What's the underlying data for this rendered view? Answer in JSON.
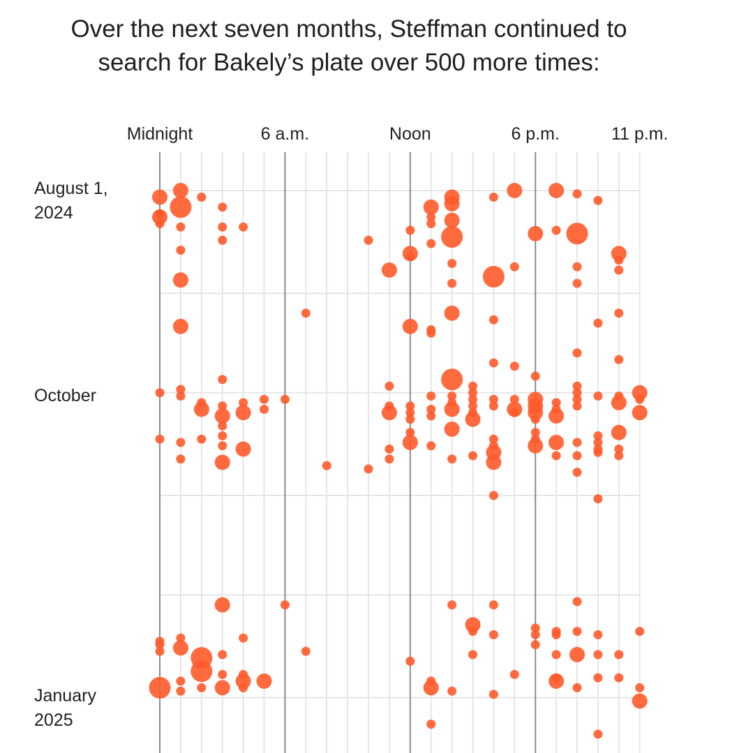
{
  "title_line1": "Over the next seven months, Steffman continued to",
  "title_line2": "search for Bakely’s plate over 500 more times:",
  "colors": {
    "dot": "#ff5a2a",
    "grid": "#e6e6e6",
    "major_grid": "#8c8c8c"
  },
  "chart_data": {
    "type": "scatter",
    "x_axis": {
      "unit": "hour of day",
      "range": [
        0,
        23
      ],
      "tick_labels": [
        {
          "hour": 0,
          "label": "Midnight"
        },
        {
          "hour": 6,
          "label": "6 a.m."
        },
        {
          "hour": 12,
          "label": "Noon"
        },
        {
          "hour": 18,
          "label": "6 p.m."
        },
        {
          "hour": 23,
          "label": "11 p.m."
        }
      ],
      "major_hours": [
        0,
        6,
        12,
        18
      ]
    },
    "y_axis": {
      "unit": "days since Aug 1, 2024",
      "row_labels": [
        {
          "day": 0,
          "lines": [
            "August 1,",
            "2024"
          ]
        },
        {
          "day": 61,
          "lines": [
            "October"
          ]
        },
        {
          "day": 153,
          "lines": [
            "January",
            "2025"
          ]
        }
      ],
      "gridline_days": [
        0,
        31,
        61,
        92,
        122,
        153
      ]
    },
    "size_encoding": "number of searches (relative)",
    "points": [
      [
        0,
        2,
        2
      ],
      [
        0,
        7,
        1
      ],
      [
        0,
        10,
        1
      ],
      [
        0,
        8,
        2
      ],
      [
        1,
        0,
        2
      ],
      [
        1,
        5,
        3
      ],
      [
        1,
        11,
        1
      ],
      [
        1,
        18,
        1
      ],
      [
        1,
        27,
        2
      ],
      [
        2,
        2,
        1
      ],
      [
        3,
        5,
        1
      ],
      [
        3,
        11,
        1
      ],
      [
        3,
        15,
        1
      ],
      [
        4,
        11,
        1
      ],
      [
        10,
        15,
        1
      ],
      [
        11,
        24,
        2
      ],
      [
        12,
        12,
        1
      ],
      [
        12,
        20,
        1
      ],
      [
        12,
        19,
        2
      ],
      [
        13,
        5,
        2
      ],
      [
        13,
        8,
        1
      ],
      [
        13,
        10,
        1
      ],
      [
        13,
        16,
        1
      ],
      [
        14,
        2,
        2
      ],
      [
        14,
        4,
        2
      ],
      [
        14,
        9,
        2
      ],
      [
        14,
        14,
        3
      ],
      [
        14,
        22,
        1
      ],
      [
        14,
        28,
        1
      ],
      [
        16,
        2,
        1
      ],
      [
        16,
        26,
        3
      ],
      [
        17,
        0,
        2
      ],
      [
        17,
        23,
        1
      ],
      [
        18,
        13,
        2
      ],
      [
        19,
        0,
        2
      ],
      [
        19,
        12,
        1
      ],
      [
        20,
        1,
        1
      ],
      [
        20,
        13,
        3
      ],
      [
        20,
        23,
        1
      ],
      [
        20,
        28,
        1
      ],
      [
        21,
        3,
        1
      ],
      [
        22,
        19,
        2
      ],
      [
        22,
        21,
        1
      ],
      [
        22,
        24,
        1
      ],
      [
        7,
        37,
        1
      ],
      [
        1,
        41,
        2
      ],
      [
        12,
        41,
        2
      ],
      [
        13,
        42,
        1
      ],
      [
        13,
        43,
        1
      ],
      [
        14,
        37,
        2
      ],
      [
        16,
        39,
        1
      ],
      [
        22,
        37,
        1
      ],
      [
        22,
        51,
        1
      ],
      [
        18,
        56,
        1
      ],
      [
        17,
        53,
        1
      ],
      [
        16,
        52,
        1
      ],
      [
        20,
        49,
        1
      ],
      [
        21,
        40,
        1
      ],
      [
        0,
        61,
        1
      ],
      [
        1,
        60,
        1
      ],
      [
        1,
        62,
        1
      ],
      [
        3,
        57,
        1
      ],
      [
        11,
        59,
        1
      ],
      [
        14,
        57,
        3
      ],
      [
        0,
        75,
        1
      ],
      [
        1,
        76,
        1
      ],
      [
        1,
        81,
        1
      ],
      [
        2,
        64,
        1
      ],
      [
        2,
        66,
        2
      ],
      [
        2,
        75,
        1
      ],
      [
        3,
        65,
        1
      ],
      [
        3,
        68,
        2
      ],
      [
        3,
        71,
        1
      ],
      [
        3,
        74,
        1
      ],
      [
        3,
        77,
        1
      ],
      [
        3,
        82,
        2
      ],
      [
        4,
        64,
        1
      ],
      [
        4,
        67,
        2
      ],
      [
        4,
        78,
        2
      ],
      [
        5,
        63,
        1
      ],
      [
        5,
        66,
        1
      ],
      [
        6,
        63,
        1
      ],
      [
        8,
        83,
        1
      ],
      [
        10,
        84,
        1
      ],
      [
        11,
        65,
        1
      ],
      [
        11,
        67,
        2
      ],
      [
        11,
        78,
        1
      ],
      [
        11,
        81,
        1
      ],
      [
        12,
        65,
        1
      ],
      [
        12,
        67,
        1
      ],
      [
        12,
        69,
        1
      ],
      [
        12,
        73,
        1
      ],
      [
        12,
        76,
        2
      ],
      [
        13,
        62,
        1
      ],
      [
        13,
        66,
        1
      ],
      [
        13,
        68,
        1
      ],
      [
        13,
        77,
        1
      ],
      [
        14,
        62,
        1
      ],
      [
        14,
        64,
        1
      ],
      [
        14,
        66,
        2
      ],
      [
        14,
        72,
        2
      ],
      [
        14,
        81,
        1
      ],
      [
        15,
        59,
        1
      ],
      [
        15,
        61,
        1
      ],
      [
        15,
        63,
        1
      ],
      [
        15,
        65,
        1
      ],
      [
        15,
        67,
        1
      ],
      [
        15,
        69,
        2
      ],
      [
        15,
        80,
        1
      ],
      [
        16,
        63,
        1
      ],
      [
        16,
        65,
        1
      ],
      [
        16,
        75,
        1
      ],
      [
        16,
        77,
        1
      ],
      [
        16,
        79,
        2
      ],
      [
        16,
        82,
        2
      ],
      [
        17,
        63,
        1
      ],
      [
        17,
        67,
        1
      ],
      [
        17,
        66,
        2
      ],
      [
        18,
        63,
        2
      ],
      [
        18,
        65,
        2
      ],
      [
        18,
        67,
        2
      ],
      [
        18,
        69,
        1
      ],
      [
        18,
        73,
        1
      ],
      [
        18,
        75,
        1
      ],
      [
        18,
        77,
        2
      ],
      [
        19,
        64,
        1
      ],
      [
        19,
        66,
        1
      ],
      [
        19,
        68,
        2
      ],
      [
        19,
        76,
        2
      ],
      [
        19,
        80,
        1
      ],
      [
        20,
        59,
        1
      ],
      [
        20,
        61,
        1
      ],
      [
        20,
        63,
        1
      ],
      [
        20,
        65,
        1
      ],
      [
        20,
        76,
        1
      ],
      [
        20,
        80,
        1
      ],
      [
        20,
        85,
        1
      ],
      [
        21,
        62,
        1
      ],
      [
        21,
        74,
        1
      ],
      [
        21,
        76,
        1
      ],
      [
        21,
        78,
        1
      ],
      [
        21,
        79,
        1
      ],
      [
        22,
        62,
        1
      ],
      [
        22,
        64,
        2
      ],
      [
        22,
        73,
        2
      ],
      [
        22,
        78,
        1
      ],
      [
        22,
        80,
        1
      ],
      [
        23,
        61,
        2
      ],
      [
        23,
        63,
        1
      ],
      [
        23,
        67,
        2
      ],
      [
        16,
        92,
        1
      ],
      [
        21,
        93,
        1
      ],
      [
        3,
        125,
        2
      ],
      [
        6,
        125,
        1
      ],
      [
        14,
        125,
        1
      ],
      [
        16,
        125,
        1
      ],
      [
        20,
        124,
        1
      ],
      [
        15,
        131,
        2
      ],
      [
        15,
        133,
        1
      ],
      [
        16,
        134,
        1
      ],
      [
        18,
        132,
        1
      ],
      [
        18,
        134,
        1
      ],
      [
        18,
        137,
        1
      ],
      [
        19,
        133,
        1
      ],
      [
        19,
        134,
        1
      ],
      [
        20,
        133,
        1
      ],
      [
        21,
        134,
        1
      ],
      [
        23,
        133,
        1
      ],
      [
        0,
        136,
        1
      ],
      [
        0,
        137,
        1
      ],
      [
        0,
        139,
        1
      ],
      [
        1,
        135,
        1
      ],
      [
        1,
        138,
        2
      ],
      [
        2,
        141,
        3
      ],
      [
        2,
        145,
        3
      ],
      [
        1,
        148,
        1
      ],
      [
        1,
        151,
        1
      ],
      [
        0,
        150,
        3
      ],
      [
        2,
        150,
        1
      ],
      [
        3,
        140,
        1
      ],
      [
        3,
        146,
        1
      ],
      [
        3,
        150,
        2
      ],
      [
        4,
        135,
        1
      ],
      [
        4,
        146,
        1
      ],
      [
        4,
        148,
        2
      ],
      [
        4,
        150,
        1
      ],
      [
        5,
        148,
        2
      ],
      [
        7,
        139,
        1
      ],
      [
        12,
        142,
        1
      ],
      [
        13,
        148,
        1
      ],
      [
        13,
        150,
        2
      ],
      [
        14,
        151,
        1
      ],
      [
        15,
        140,
        1
      ],
      [
        16,
        152,
        1
      ],
      [
        17,
        146,
        1
      ],
      [
        19,
        140,
        1
      ],
      [
        19,
        147,
        1
      ],
      [
        19,
        148,
        2
      ],
      [
        20,
        140,
        2
      ],
      [
        20,
        150,
        1
      ],
      [
        21,
        140,
        1
      ],
      [
        21,
        147,
        1
      ],
      [
        22,
        140,
        1
      ],
      [
        22,
        147,
        1
      ],
      [
        23,
        150,
        1
      ],
      [
        23,
        154,
        2
      ],
      [
        13,
        161,
        1
      ],
      [
        21,
        164,
        1
      ]
    ]
  }
}
